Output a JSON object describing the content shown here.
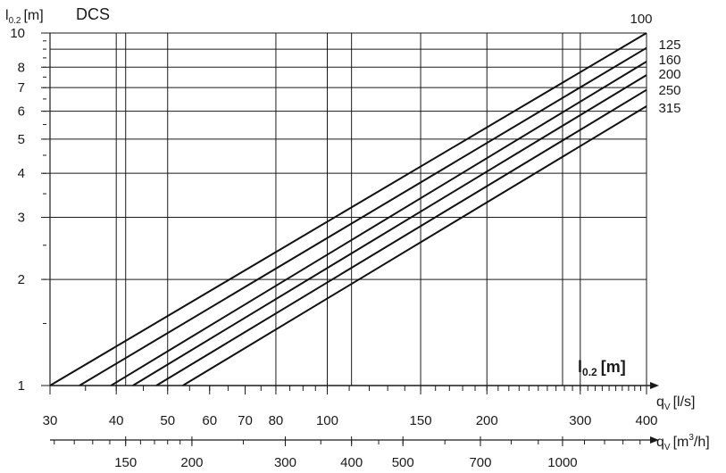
{
  "chart_data": {
    "type": "line",
    "title": "DCS",
    "ylabel": {
      "main": "l",
      "sub": "0.2",
      "unit": "[m]"
    },
    "xlabel_primary": {
      "main": "q",
      "sub": "V",
      "unit": "[l/s]"
    },
    "xlabel_secondary": {
      "main": "q",
      "sub": "V",
      "unit_pre": "[m",
      "sup": "3",
      "unit_post": "/h]"
    },
    "inner_label": {
      "main": "l",
      "sub": "0.2",
      "unit": "[m]"
    },
    "x_scale": "log",
    "y_scale": "log",
    "xlim": [
      30,
      400
    ],
    "ylim": [
      1,
      10
    ],
    "grid": true,
    "y_ticks": [
      1,
      2,
      3,
      4,
      5,
      6,
      7,
      8,
      10
    ],
    "x_ticks_primary": [
      30,
      40,
      50,
      60,
      70,
      80,
      100,
      150,
      200,
      300,
      400
    ],
    "x_ticks_secondary": [
      150,
      200,
      300,
      400,
      500,
      700,
      1000
    ],
    "series": [
      {
        "name": "100",
        "x": [
          30,
          400
        ],
        "y": [
          1.0,
          10.0
        ]
      },
      {
        "name": "125",
        "x": [
          34.1,
          400
        ],
        "y": [
          1.0,
          9.07
        ]
      },
      {
        "name": "160",
        "x": [
          39.1,
          400
        ],
        "y": [
          1.0,
          8.3
        ]
      },
      {
        "name": "200",
        "x": [
          43.0,
          400
        ],
        "y": [
          1.0,
          7.6
        ]
      },
      {
        "name": "250",
        "x": [
          47.6,
          400
        ],
        "y": [
          1.0,
          6.9
        ]
      },
      {
        "name": "315",
        "x": [
          53.4,
          400
        ],
        "y": [
          1.0,
          6.2
        ]
      }
    ]
  }
}
